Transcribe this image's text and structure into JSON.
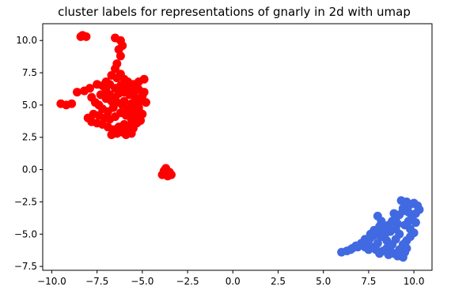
{
  "chart_data": {
    "type": "scatter",
    "title": "cluster labels for representations of gnarly in 2d with umap",
    "xlabel": "",
    "ylabel": "",
    "xlim": [
      -10.5,
      11.0
    ],
    "ylim": [
      -7.8,
      11.3
    ],
    "grid": false,
    "x_ticks": [
      -10.0,
      -7.5,
      -5.0,
      -2.5,
      0.0,
      2.5,
      5.0,
      7.5,
      10.0
    ],
    "x_tick_labels": [
      "−10.0",
      "−7.5",
      "−5.0",
      "−2.5",
      "0.0",
      "2.5",
      "5.0",
      "7.5",
      "10.0"
    ],
    "y_ticks": [
      10.0,
      7.5,
      5.0,
      2.5,
      0.0,
      -2.5,
      -5.0,
      -7.5
    ],
    "y_tick_labels": [
      "10.0",
      "7.5",
      "5.0",
      "2.5",
      "0.0",
      "−2.5",
      "−5.0",
      "−7.5"
    ],
    "series": [
      {
        "color": "#ff0000",
        "points": [
          [
            -8.3,
            10.4
          ],
          [
            -8.1,
            10.3
          ],
          [
            -8.4,
            10.3
          ],
          [
            -6.5,
            10.2
          ],
          [
            -6.2,
            10.0
          ],
          [
            -6.1,
            9.6
          ],
          [
            -6.3,
            9.3
          ],
          [
            -6.2,
            8.8
          ],
          [
            -6.4,
            8.2
          ],
          [
            -6.5,
            7.8
          ],
          [
            -6.7,
            7.3
          ],
          [
            -6.4,
            7.1
          ],
          [
            -6.0,
            7.0
          ],
          [
            -5.8,
            6.8
          ],
          [
            -5.5,
            6.6
          ],
          [
            -5.2,
            6.8
          ],
          [
            -4.9,
            7.0
          ],
          [
            -9.5,
            5.1
          ],
          [
            -9.2,
            5.0
          ],
          [
            -8.9,
            5.1
          ],
          [
            -8.6,
            6.0
          ],
          [
            -8.2,
            6.1
          ],
          [
            -7.9,
            6.3
          ],
          [
            -7.5,
            6.6
          ],
          [
            -7.2,
            6.5
          ],
          [
            -7.0,
            6.1
          ],
          [
            -6.8,
            5.8
          ],
          [
            -6.5,
            5.6
          ],
          [
            -6.3,
            5.9
          ],
          [
            -6.0,
            6.0
          ],
          [
            -5.7,
            5.8
          ],
          [
            -5.4,
            5.6
          ],
          [
            -5.1,
            5.3
          ],
          [
            -4.8,
            5.2
          ],
          [
            -4.9,
            6.0
          ],
          [
            -5.2,
            6.2
          ],
          [
            -5.6,
            6.3
          ],
          [
            -5.9,
            6.4
          ],
          [
            -7.8,
            5.6
          ],
          [
            -7.6,
            5.2
          ],
          [
            -7.4,
            5.0
          ],
          [
            -7.2,
            4.7
          ],
          [
            -6.9,
            4.5
          ],
          [
            -6.6,
            4.8
          ],
          [
            -6.4,
            5.2
          ],
          [
            -6.1,
            5.0
          ],
          [
            -5.8,
            4.7
          ],
          [
            -5.5,
            4.5
          ],
          [
            -5.2,
            4.8
          ],
          [
            -5.0,
            4.3
          ],
          [
            -5.3,
            4.0
          ],
          [
            -5.6,
            3.9
          ],
          [
            -5.9,
            4.2
          ],
          [
            -6.2,
            4.4
          ],
          [
            -6.5,
            4.1
          ],
          [
            -6.8,
            3.9
          ],
          [
            -7.1,
            4.0
          ],
          [
            -7.4,
            4.2
          ],
          [
            -7.7,
            4.3
          ],
          [
            -8.0,
            4.0
          ],
          [
            -7.8,
            3.7
          ],
          [
            -7.5,
            3.6
          ],
          [
            -7.2,
            3.5
          ],
          [
            -6.9,
            3.3
          ],
          [
            -6.6,
            3.1
          ],
          [
            -6.3,
            3.3
          ],
          [
            -6.0,
            3.5
          ],
          [
            -5.7,
            3.4
          ],
          [
            -5.5,
            3.2
          ],
          [
            -5.8,
            3.0
          ],
          [
            -6.1,
            2.9
          ],
          [
            -6.4,
            2.8
          ],
          [
            -6.7,
            2.7
          ],
          [
            -5.9,
            2.7
          ],
          [
            -5.6,
            2.8
          ],
          [
            -5.3,
            3.6
          ],
          [
            -5.1,
            3.8
          ],
          [
            -6.0,
            5.3
          ],
          [
            -6.7,
            5.3
          ],
          [
            -7.0,
            5.5
          ],
          [
            -7.3,
            5.8
          ],
          [
            -5.6,
            5.1
          ],
          [
            -5.3,
            5.0
          ],
          [
            -5.5,
            6.0
          ],
          [
            -6.2,
            6.5
          ],
          [
            -6.5,
            6.3
          ],
          [
            -6.8,
            6.6
          ],
          [
            -7.0,
            6.8
          ],
          [
            -6.2,
            7.4
          ],
          [
            -5.7,
            4.2
          ],
          [
            -5.0,
            5.7
          ],
          [
            -5.2,
            4.6
          ],
          [
            -3.9,
            -0.4
          ],
          [
            -3.7,
            -0.3
          ],
          [
            -3.5,
            -0.2
          ],
          [
            -3.8,
            -0.1
          ],
          [
            -3.6,
            -0.5
          ],
          [
            -3.7,
            0.1
          ],
          [
            -3.4,
            -0.4
          ]
        ]
      },
      {
        "color": "#4169e1",
        "points": [
          [
            6.0,
            -6.4
          ],
          [
            6.3,
            -6.3
          ],
          [
            6.6,
            -6.1
          ],
          [
            6.9,
            -6.0
          ],
          [
            7.2,
            -5.8
          ],
          [
            7.4,
            -5.6
          ],
          [
            7.6,
            -5.3
          ],
          [
            7.8,
            -5.1
          ],
          [
            8.0,
            -4.9
          ],
          [
            8.2,
            -4.7
          ],
          [
            8.4,
            -4.5
          ],
          [
            8.6,
            -4.3
          ],
          [
            8.8,
            -4.0
          ],
          [
            9.0,
            -3.8
          ],
          [
            9.2,
            -3.5
          ],
          [
            9.4,
            -3.2
          ],
          [
            9.6,
            -2.9
          ],
          [
            9.8,
            -2.7
          ],
          [
            10.0,
            -2.6
          ],
          [
            10.2,
            -2.8
          ],
          [
            10.3,
            -3.1
          ],
          [
            9.3,
            -2.4
          ],
          [
            9.6,
            -2.5
          ],
          [
            10.1,
            -3.4
          ],
          [
            9.9,
            -3.7
          ],
          [
            9.7,
            -4.0
          ],
          [
            9.5,
            -4.3
          ],
          [
            9.8,
            -4.6
          ],
          [
            10.0,
            -4.9
          ],
          [
            9.8,
            -5.2
          ],
          [
            9.6,
            -5.5
          ],
          [
            9.4,
            -5.8
          ],
          [
            9.6,
            -6.1
          ],
          [
            9.5,
            -6.4
          ],
          [
            9.3,
            -6.6
          ],
          [
            9.1,
            -6.7
          ],
          [
            8.9,
            -6.5
          ],
          [
            8.7,
            -6.3
          ],
          [
            8.5,
            -6.1
          ],
          [
            8.3,
            -6.3
          ],
          [
            8.1,
            -6.5
          ],
          [
            7.9,
            -6.2
          ],
          [
            7.7,
            -6.0
          ],
          [
            7.5,
            -6.2
          ],
          [
            7.3,
            -6.0
          ],
          [
            7.1,
            -5.7
          ],
          [
            7.3,
            -5.4
          ],
          [
            7.6,
            -5.0
          ],
          [
            7.9,
            -4.8
          ],
          [
            8.2,
            -5.2
          ],
          [
            8.5,
            -5.5
          ],
          [
            8.8,
            -5.8
          ],
          [
            9.0,
            -5.4
          ],
          [
            9.2,
            -5.0
          ],
          [
            9.0,
            -4.6
          ],
          [
            8.7,
            -4.8
          ],
          [
            8.4,
            -5.0
          ],
          [
            8.1,
            -4.4
          ],
          [
            7.8,
            -4.7
          ],
          [
            8.0,
            -3.6
          ],
          [
            8.2,
            -4.0
          ],
          [
            9.4,
            -3.0
          ],
          [
            9.7,
            -3.3
          ],
          [
            10.1,
            -4.1
          ],
          [
            9.2,
            -6.2
          ],
          [
            8.6,
            -6.6
          ],
          [
            9.4,
            -6.8
          ],
          [
            8.0,
            -5.7
          ],
          [
            7.5,
            -5.5
          ],
          [
            6.8,
            -5.9
          ],
          [
            6.5,
            -6.2
          ],
          [
            9.1,
            -4.2
          ],
          [
            8.9,
            -3.4
          ],
          [
            9.5,
            -5.7
          ]
        ]
      }
    ]
  }
}
